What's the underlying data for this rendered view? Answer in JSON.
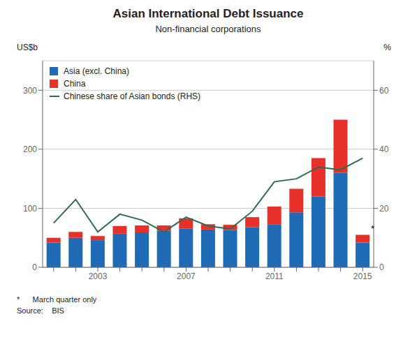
{
  "chart_data": {
    "type": "bar",
    "title": "Asian International Debt Issuance",
    "subtitle": "Non-financial corporations",
    "y_label": "US$b",
    "y2_label": "%",
    "categories": [
      null,
      null,
      "2003",
      null,
      null,
      null,
      "2007",
      null,
      null,
      null,
      "2011",
      null,
      null,
      null,
      "2015"
    ],
    "stacked": true,
    "series": [
      {
        "name": "Asia (excl. China)",
        "type": "bar",
        "color": "#1f6bb5",
        "values": [
          42,
          50,
          46,
          57,
          59,
          62,
          66,
          64,
          63,
          68,
          73,
          93,
          120,
          160,
          42
        ]
      },
      {
        "name": "China",
        "type": "bar",
        "color": "#e8302a",
        "values": [
          8,
          10,
          7,
          13,
          12,
          9,
          17,
          9,
          9,
          17,
          30,
          40,
          65,
          90,
          13
        ]
      },
      {
        "name": "Chinese share of Asian bonds (RHS)",
        "type": "line",
        "axis": "y2",
        "color": "#2e6b55",
        "values": [
          15,
          23,
          12,
          18,
          16,
          12,
          17,
          14,
          13,
          19,
          29,
          30,
          34,
          33,
          37
        ]
      }
    ],
    "ylim": [
      0,
      350
    ],
    "yticks": [
      0,
      100,
      200,
      300
    ],
    "y2lim": [
      0,
      70
    ],
    "y2ticks": [
      0,
      20,
      40,
      60
    ],
    "grid": true,
    "legend": "upper left",
    "annotations": [
      {
        "text": "*"
      }
    ],
    "footnotes": [
      "*      March quarter only",
      "Source:    BIS"
    ]
  }
}
